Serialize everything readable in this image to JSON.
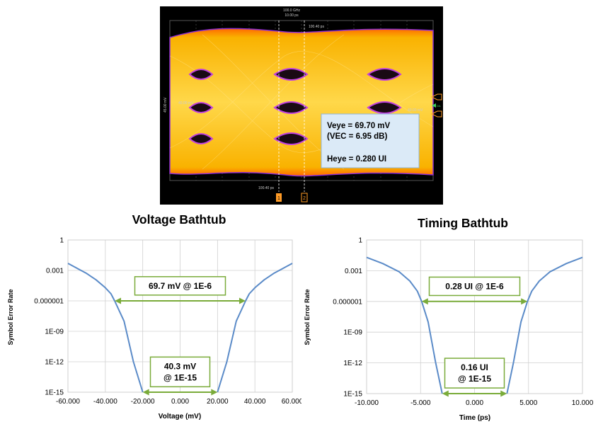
{
  "scope": {
    "top_readout_1": "100.0 GHz",
    "top_readout_2": "10.00 ps",
    "marker_label": "100.40 ps",
    "bottom_label": "100.40 ps",
    "left_axis_label": "45.00 mV",
    "ref_label_left": "40.00 mV",
    "ref_label_right": "40.00 mV",
    "marker_1": "1",
    "marker_2": "2",
    "right_tag": "DA",
    "colors": {
      "background": "#000000",
      "eye_core": "#f7c300",
      "eye_edge": "#ff7a00",
      "eye_outline": "#8a2cd0",
      "grid": "#6a6a6a"
    },
    "info": {
      "line1": "Veye = 69.70 mV",
      "line2": "(VEC =  6.95 dB)",
      "line3": "Heye = 0.280 UI"
    }
  },
  "chart_data": [
    {
      "type": "line",
      "title": "Voltage Bathtub",
      "xlabel": "Voltage (mV)",
      "ylabel": "Symbol Error Rate",
      "xlim": [
        -60000,
        60000
      ],
      "xticks": [
        -60000,
        -40000,
        -20000,
        0,
        20000,
        40000,
        60000
      ],
      "xtick_labels": [
        "-60.000",
        "-40.000",
        "-20.000",
        "0.000",
        "20.000",
        "40.000",
        "60.000"
      ],
      "y_scale": "log",
      "ylim": [
        1e-15,
        1
      ],
      "yticks": [
        1,
        0.001,
        1e-06,
        1e-09,
        1e-12,
        1e-15
      ],
      "ytick_labels": [
        "1",
        "0.001",
        "0.000001",
        "1E-09",
        "1E-12",
        "1E-15"
      ],
      "grid": true,
      "line_color": "#5b8bc8",
      "series": [
        {
          "x": [
            -60000,
            -50000,
            -45000,
            -40000,
            -37000,
            -35000,
            -30000,
            -25000,
            -20000
          ],
          "y": [
            0.005,
            0.0005,
            0.00012,
            2e-05,
            5e-06,
            1e-06,
            1e-08,
            1e-12,
            1e-15
          ]
        },
        {
          "x": [
            20000,
            25000,
            30000,
            35000,
            37000,
            40000,
            45000,
            50000,
            60000
          ],
          "y": [
            1e-15,
            1e-12,
            1e-08,
            1e-06,
            5e-06,
            2e-05,
            0.00012,
            0.0005,
            0.005
          ]
        }
      ],
      "annotations": [
        {
          "text_lines": [
            "69.7 mV @ 1E-6"
          ],
          "x_from": -35000,
          "x_to": 35000,
          "y": 1e-06,
          "label_y": 3e-05,
          "color": "#7aab3a"
        },
        {
          "text_lines": [
            "40.3 mV",
            "@ 1E-15"
          ],
          "x_from": -20000,
          "x_to": 20000,
          "y": 1e-15,
          "label_y": 1e-13,
          "color": "#7aab3a"
        }
      ]
    },
    {
      "type": "line",
      "title": "Timing Bathtub",
      "xlabel": "Time (ps)",
      "ylabel": "Symbol Error Rate",
      "xlim": [
        -10,
        10
      ],
      "xticks": [
        -10,
        -5,
        0,
        5,
        10
      ],
      "xtick_labels": [
        "-10.000",
        "-5.000",
        "0.000",
        "5.000",
        "10.000"
      ],
      "y_scale": "log",
      "ylim": [
        1e-15,
        1
      ],
      "yticks": [
        1,
        0.001,
        1e-06,
        1e-09,
        1e-12,
        1e-15
      ],
      "ytick_labels": [
        "1",
        "0.001",
        "0.000001",
        "1E-09",
        "1E-12",
        "1E-15"
      ],
      "grid": true,
      "line_color": "#5b8bc8",
      "series": [
        {
          "x": [
            -10,
            -8.5,
            -7,
            -6,
            -5.3,
            -4.9,
            -4.3,
            -3.6,
            -3.0
          ],
          "y": [
            0.02,
            0.005,
            0.0008,
            0.0001,
            1e-05,
            1e-06,
            1e-08,
            1e-12,
            1e-15
          ]
        },
        {
          "x": [
            3.0,
            3.6,
            4.3,
            4.9,
            5.3,
            6,
            7,
            8.5,
            10
          ],
          "y": [
            1e-15,
            1e-12,
            1e-08,
            1e-06,
            1e-05,
            0.0001,
            0.0008,
            0.005,
            0.02
          ]
        }
      ],
      "annotations": [
        {
          "text_lines": [
            "0.28 UI @ 1E-6"
          ],
          "x_from": -4.9,
          "x_to": 4.9,
          "y": 1e-06,
          "label_y": 3e-05,
          "color": "#7aab3a"
        },
        {
          "text_lines": [
            "0.16 UI",
            "@ 1E-15"
          ],
          "x_from": -3.0,
          "x_to": 3.0,
          "y": 1e-15,
          "label_y": 1e-13,
          "color": "#7aab3a"
        }
      ]
    }
  ]
}
